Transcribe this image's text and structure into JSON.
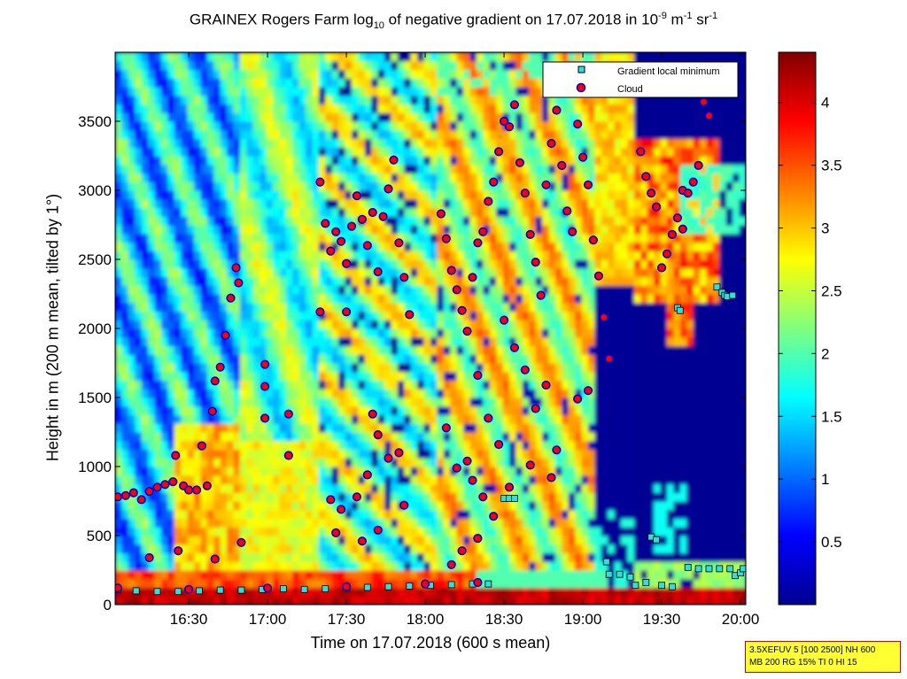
{
  "title": {
    "main": "GRAINEX Rogers Farm log",
    "sub": "10",
    "mid": " of negative gradient on 17.07.2018 in 10",
    "exp1": "-9",
    "mid2": " m",
    "exp2": "-1",
    "mid3": " sr",
    "exp3": "-1"
  },
  "info_box": {
    "line1": "3.5XEFUV 5 [100 2500] NH 600",
    "line2": "MB 200 RG 15% TI 0 HI 15"
  },
  "colors": {
    "marker_gradient_fill": "#33dddd",
    "marker_cloud_fill": "#ff0000",
    "marker_cloud_edge": "#0000cc",
    "background_field": "#00008f"
  },
  "chart_data": {
    "type": "heatmap",
    "title": "GRAINEX Rogers Farm log10 of negative gradient on 17.07.2018 in 10^-9 m^-1 sr^-1",
    "xlabel": "Time on 17.07.2018 (600 s mean)",
    "ylabel": "Height in m (200 m mean, tilted by 1°)",
    "x_ticks": [
      "16:30",
      "17:00",
      "17:30",
      "18:00",
      "18:30",
      "19:00",
      "19:30",
      "20:00"
    ],
    "x_tick_minutes": [
      990,
      1020,
      1050,
      1080,
      1110,
      1140,
      1170,
      1200
    ],
    "xlim_minutes": [
      962,
      1202
    ],
    "y_ticks": [
      0,
      500,
      1000,
      1500,
      2000,
      2500,
      3000,
      3500
    ],
    "ylim": [
      0,
      4000
    ],
    "colorbar": {
      "ticks": [
        0.5,
        1,
        1.5,
        2,
        2.5,
        3,
        3.5,
        4
      ],
      "range": [
        0,
        4.4
      ],
      "colormap": "jet"
    },
    "legend": {
      "placement": "top-right",
      "entries": [
        {
          "label": "Gradient local minimum",
          "marker": "square"
        },
        {
          "label": "Cloud",
          "marker": "circle"
        }
      ]
    },
    "series": [
      {
        "name": "Gradient local minimum",
        "points": [
          {
            "x": 963,
            "y": 110
          },
          {
            "x": 970,
            "y": 100
          },
          {
            "x": 978,
            "y": 95
          },
          {
            "x": 986,
            "y": 95
          },
          {
            "x": 994,
            "y": 100
          },
          {
            "x": 1002,
            "y": 105
          },
          {
            "x": 1010,
            "y": 105
          },
          {
            "x": 1018,
            "y": 110
          },
          {
            "x": 1026,
            "y": 115
          },
          {
            "x": 1034,
            "y": 110
          },
          {
            "x": 1042,
            "y": 115
          },
          {
            "x": 1050,
            "y": 120
          },
          {
            "x": 1058,
            "y": 125
          },
          {
            "x": 1066,
            "y": 130
          },
          {
            "x": 1074,
            "y": 135
          },
          {
            "x": 1082,
            "y": 140
          },
          {
            "x": 1090,
            "y": 145
          },
          {
            "x": 1098,
            "y": 150
          },
          {
            "x": 1104,
            "y": 150
          },
          {
            "x": 1110,
            "y": 770
          },
          {
            "x": 1112,
            "y": 770
          },
          {
            "x": 1114,
            "y": 770
          },
          {
            "x": 1149,
            "y": 310
          },
          {
            "x": 1150,
            "y": 220
          },
          {
            "x": 1154,
            "y": 220
          },
          {
            "x": 1158,
            "y": 200
          },
          {
            "x": 1160,
            "y": 140
          },
          {
            "x": 1164,
            "y": 160
          },
          {
            "x": 1166,
            "y": 490
          },
          {
            "x": 1168,
            "y": 470
          },
          {
            "x": 1170,
            "y": 140
          },
          {
            "x": 1174,
            "y": 130
          },
          {
            "x": 1176,
            "y": 2150
          },
          {
            "x": 1177,
            "y": 2130
          },
          {
            "x": 1180,
            "y": 270
          },
          {
            "x": 1184,
            "y": 260
          },
          {
            "x": 1188,
            "y": 260
          },
          {
            "x": 1191,
            "y": 2300
          },
          {
            "x": 1192,
            "y": 260
          },
          {
            "x": 1193,
            "y": 2260
          },
          {
            "x": 1194,
            "y": 2240
          },
          {
            "x": 1195,
            "y": 2230
          },
          {
            "x": 1196,
            "y": 260
          },
          {
            "x": 1197,
            "y": 2240
          },
          {
            "x": 1198,
            "y": 210
          },
          {
            "x": 1200,
            "y": 230
          },
          {
            "x": 1201,
            "y": 260
          }
        ]
      },
      {
        "name": "Cloud",
        "points": [
          {
            "x": 963,
            "y": 780
          },
          {
            "x": 966,
            "y": 790
          },
          {
            "x": 969,
            "y": 810
          },
          {
            "x": 972,
            "y": 760
          },
          {
            "x": 975,
            "y": 820
          },
          {
            "x": 978,
            "y": 850
          },
          {
            "x": 981,
            "y": 870
          },
          {
            "x": 984,
            "y": 890
          },
          {
            "x": 985,
            "y": 1080
          },
          {
            "x": 988,
            "y": 860
          },
          {
            "x": 990,
            "y": 830
          },
          {
            "x": 993,
            "y": 830
          },
          {
            "x": 995,
            "y": 1150
          },
          {
            "x": 997,
            "y": 860
          },
          {
            "x": 999,
            "y": 1400
          },
          {
            "x": 1000,
            "y": 1620
          },
          {
            "x": 1002,
            "y": 1720
          },
          {
            "x": 1004,
            "y": 1950
          },
          {
            "x": 1006,
            "y": 2220
          },
          {
            "x": 1008,
            "y": 2440
          },
          {
            "x": 1009,
            "y": 2330
          },
          {
            "x": 1010,
            "y": 450
          },
          {
            "x": 1019,
            "y": 1740
          },
          {
            "x": 1019,
            "y": 1350
          },
          {
            "x": 1019,
            "y": 1580
          },
          {
            "x": 1028,
            "y": 1380
          },
          {
            "x": 1028,
            "y": 1080
          },
          {
            "x": 1000,
            "y": 330
          },
          {
            "x": 986,
            "y": 390
          },
          {
            "x": 975,
            "y": 340
          },
          {
            "x": 1040,
            "y": 3060
          },
          {
            "x": 1042,
            "y": 2760
          },
          {
            "x": 1044,
            "y": 2560
          },
          {
            "x": 1046,
            "y": 2700
          },
          {
            "x": 1048,
            "y": 2630
          },
          {
            "x": 1050,
            "y": 2470
          },
          {
            "x": 1052,
            "y": 2740
          },
          {
            "x": 1054,
            "y": 2960
          },
          {
            "x": 1056,
            "y": 2790
          },
          {
            "x": 1058,
            "y": 2600
          },
          {
            "x": 1060,
            "y": 2840
          },
          {
            "x": 1040,
            "y": 2120
          },
          {
            "x": 1050,
            "y": 2120
          },
          {
            "x": 1062,
            "y": 2410
          },
          {
            "x": 1064,
            "y": 2810
          },
          {
            "x": 1066,
            "y": 3010
          },
          {
            "x": 1068,
            "y": 3220
          },
          {
            "x": 1070,
            "y": 2620
          },
          {
            "x": 1072,
            "y": 2370
          },
          {
            "x": 1074,
            "y": 2100
          },
          {
            "x": 1060,
            "y": 1380
          },
          {
            "x": 1062,
            "y": 1230
          },
          {
            "x": 1058,
            "y": 940
          },
          {
            "x": 1066,
            "y": 1060
          },
          {
            "x": 1070,
            "y": 1100
          },
          {
            "x": 1044,
            "y": 760
          },
          {
            "x": 1048,
            "y": 690
          },
          {
            "x": 1054,
            "y": 780
          },
          {
            "x": 1046,
            "y": 520
          },
          {
            "x": 1056,
            "y": 460
          },
          {
            "x": 1062,
            "y": 540
          },
          {
            "x": 1072,
            "y": 720
          },
          {
            "x": 1086,
            "y": 2830
          },
          {
            "x": 1088,
            "y": 2650
          },
          {
            "x": 1090,
            "y": 2420
          },
          {
            "x": 1092,
            "y": 2280
          },
          {
            "x": 1094,
            "y": 2130
          },
          {
            "x": 1096,
            "y": 1980
          },
          {
            "x": 1098,
            "y": 2370
          },
          {
            "x": 1100,
            "y": 2620
          },
          {
            "x": 1102,
            "y": 2700
          },
          {
            "x": 1104,
            "y": 2920
          },
          {
            "x": 1106,
            "y": 3060
          },
          {
            "x": 1108,
            "y": 3280
          },
          {
            "x": 1110,
            "y": 3500
          },
          {
            "x": 1112,
            "y": 3460
          },
          {
            "x": 1114,
            "y": 3620
          },
          {
            "x": 1116,
            "y": 3200
          },
          {
            "x": 1118,
            "y": 2980
          },
          {
            "x": 1120,
            "y": 2680
          },
          {
            "x": 1122,
            "y": 2480
          },
          {
            "x": 1124,
            "y": 2240
          },
          {
            "x": 1126,
            "y": 3040
          },
          {
            "x": 1128,
            "y": 3340
          },
          {
            "x": 1130,
            "y": 3580
          },
          {
            "x": 1132,
            "y": 3180
          },
          {
            "x": 1134,
            "y": 2850
          },
          {
            "x": 1136,
            "y": 2700
          },
          {
            "x": 1138,
            "y": 3480
          },
          {
            "x": 1140,
            "y": 3240
          },
          {
            "x": 1142,
            "y": 3040
          },
          {
            "x": 1144,
            "y": 2640
          },
          {
            "x": 1146,
            "y": 2380
          },
          {
            "x": 1148,
            "y": 2080
          },
          {
            "x": 1150,
            "y": 1780
          },
          {
            "x": 1110,
            "y": 2060
          },
          {
            "x": 1114,
            "y": 1860
          },
          {
            "x": 1118,
            "y": 1700
          },
          {
            "x": 1122,
            "y": 1420
          },
          {
            "x": 1126,
            "y": 1590
          },
          {
            "x": 1138,
            "y": 1490
          },
          {
            "x": 1142,
            "y": 1550
          },
          {
            "x": 1100,
            "y": 1660
          },
          {
            "x": 1104,
            "y": 1350
          },
          {
            "x": 1108,
            "y": 1160
          },
          {
            "x": 1096,
            "y": 1040
          },
          {
            "x": 1092,
            "y": 990
          },
          {
            "x": 1088,
            "y": 1280
          },
          {
            "x": 1098,
            "y": 900
          },
          {
            "x": 1102,
            "y": 780
          },
          {
            "x": 1106,
            "y": 640
          },
          {
            "x": 1100,
            "y": 480
          },
          {
            "x": 1094,
            "y": 390
          },
          {
            "x": 1090,
            "y": 290
          },
          {
            "x": 1128,
            "y": 920
          },
          {
            "x": 1130,
            "y": 1120
          },
          {
            "x": 1120,
            "y": 1010
          },
          {
            "x": 1112,
            "y": 850
          },
          {
            "x": 1162,
            "y": 3280
          },
          {
            "x": 1164,
            "y": 3100
          },
          {
            "x": 1166,
            "y": 2980
          },
          {
            "x": 1168,
            "y": 2880
          },
          {
            "x": 1170,
            "y": 2440
          },
          {
            "x": 1172,
            "y": 2540
          },
          {
            "x": 1174,
            "y": 2680
          },
          {
            "x": 1176,
            "y": 2800
          },
          {
            "x": 1178,
            "y": 3000
          },
          {
            "x": 1180,
            "y": 2980
          },
          {
            "x": 1182,
            "y": 3060
          },
          {
            "x": 1184,
            "y": 3180
          },
          {
            "x": 1186,
            "y": 3640
          },
          {
            "x": 1188,
            "y": 3540
          },
          {
            "x": 1178,
            "y": 2720
          },
          {
            "x": 963,
            "y": 120
          },
          {
            "x": 990,
            "y": 110
          },
          {
            "x": 1020,
            "y": 120
          },
          {
            "x": 1050,
            "y": 130
          },
          {
            "x": 1080,
            "y": 150
          },
          {
            "x": 1100,
            "y": 160
          }
        ]
      }
    ]
  }
}
